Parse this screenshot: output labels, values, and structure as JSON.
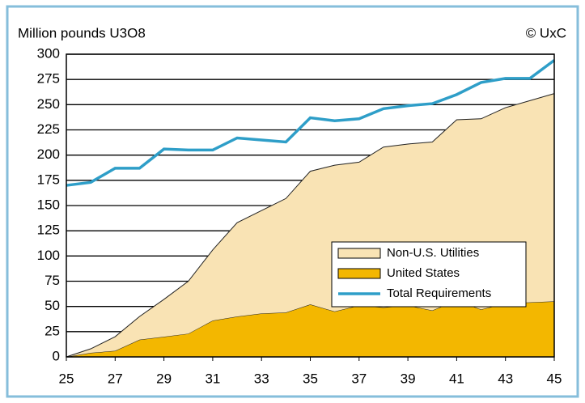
{
  "chart_data": {
    "type": "area",
    "title": "Million pounds U3O8",
    "subtitle": "© UxC",
    "x": [
      25,
      26,
      27,
      28,
      29,
      30,
      31,
      32,
      33,
      34,
      35,
      36,
      37,
      38,
      39,
      40,
      41,
      42,
      43,
      44,
      45
    ],
    "xlim": [
      25,
      45
    ],
    "xticks": [
      25,
      27,
      29,
      31,
      33,
      35,
      37,
      39,
      41,
      43,
      45
    ],
    "ylim": [
      0,
      300
    ],
    "yticks": [
      0,
      25,
      50,
      75,
      100,
      125,
      150,
      175,
      200,
      225,
      250,
      275,
      300
    ],
    "grid": true,
    "legend": "center right",
    "series": [
      {
        "name": "Non-U.S. Utilities",
        "kind": "area",
        "color": "#f9e3b4",
        "values": [
          0,
          4,
          14,
          23,
          37,
          52,
          70,
          93,
          102,
          113,
          132,
          145,
          142,
          159,
          160,
          167,
          179,
          189,
          194,
          200,
          206
        ]
      },
      {
        "name": "United States",
        "kind": "area",
        "color": "#f3b700",
        "values": [
          0,
          4,
          6,
          17,
          20,
          23,
          36,
          40,
          43,
          44,
          52,
          45,
          51,
          49,
          51,
          46,
          56,
          47,
          53,
          54,
          55
        ]
      },
      {
        "name": "Total Requirements",
        "kind": "line",
        "color": "#2e9ec8",
        "values": [
          170,
          173,
          187,
          187,
          206,
          205,
          205,
          217,
          215,
          213,
          237,
          234,
          236,
          246,
          249,
          251,
          260,
          272,
          276,
          276,
          294
        ]
      }
    ]
  }
}
